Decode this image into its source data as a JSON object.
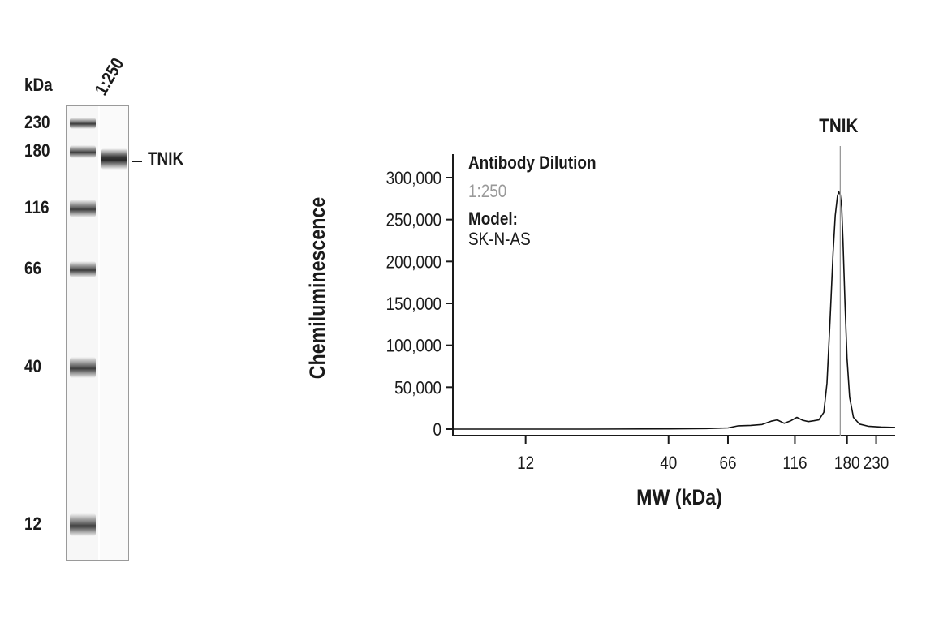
{
  "gel": {
    "unit_label": "kDa",
    "lane_header": "1:250",
    "markers": [
      {
        "label": "230",
        "value": 230
      },
      {
        "label": "180",
        "value": 180
      },
      {
        "label": "116",
        "value": 116
      },
      {
        "label": "66",
        "value": 66
      },
      {
        "label": "40",
        "value": 40
      },
      {
        "label": "12",
        "value": 12
      }
    ],
    "target_label": "TNIK",
    "target_value": 170
  },
  "chart_data": {
    "type": "line",
    "title": "",
    "xlabel": "MW (kDa)",
    "ylabel": "Chemiluminescence",
    "x_scale": "log",
    "xlim": [
      6.5,
      270
    ],
    "ylim": [
      -12000,
      330000
    ],
    "x_ticks": [
      12,
      40,
      66,
      116,
      180,
      230
    ],
    "x_tick_labels": [
      "12",
      "40",
      "66",
      "116",
      "180",
      "230"
    ],
    "y_ticks": [
      0,
      50000,
      100000,
      150000,
      200000,
      250000,
      300000
    ],
    "y_tick_labels": [
      "0",
      "50,000",
      "100,000",
      "150,000",
      "200,000",
      "250,000",
      "300,000"
    ],
    "grid": false,
    "peak_marker": {
      "label": "TNIK",
      "x": 170
    },
    "legend": {
      "title": "Antibody Dilution",
      "entries": [
        {
          "label": "1:250",
          "color": "#999999"
        }
      ],
      "model_title": "Model:",
      "model_value": "SK-N-AS"
    },
    "series": [
      {
        "color": "#111111",
        "x": [
          6.5,
          20,
          40,
          55,
          66,
          72,
          80,
          88,
          95,
          100,
          106,
          112,
          118,
          124,
          130,
          136,
          142,
          148,
          152,
          156,
          160,
          163,
          166,
          168,
          170,
          172,
          174,
          177,
          180,
          184,
          190,
          200,
          215,
          240,
          270
        ],
        "y": [
          0,
          0,
          300,
          700,
          1500,
          4000,
          4500,
          5500,
          9500,
          11000,
          7000,
          10000,
          14000,
          10500,
          9000,
          10000,
          11000,
          20000,
          55000,
          130000,
          210000,
          255000,
          278000,
          283000,
          280000,
          265000,
          225000,
          150000,
          85000,
          38000,
          14000,
          6000,
          3500,
          2500,
          2000
        ]
      }
    ]
  }
}
